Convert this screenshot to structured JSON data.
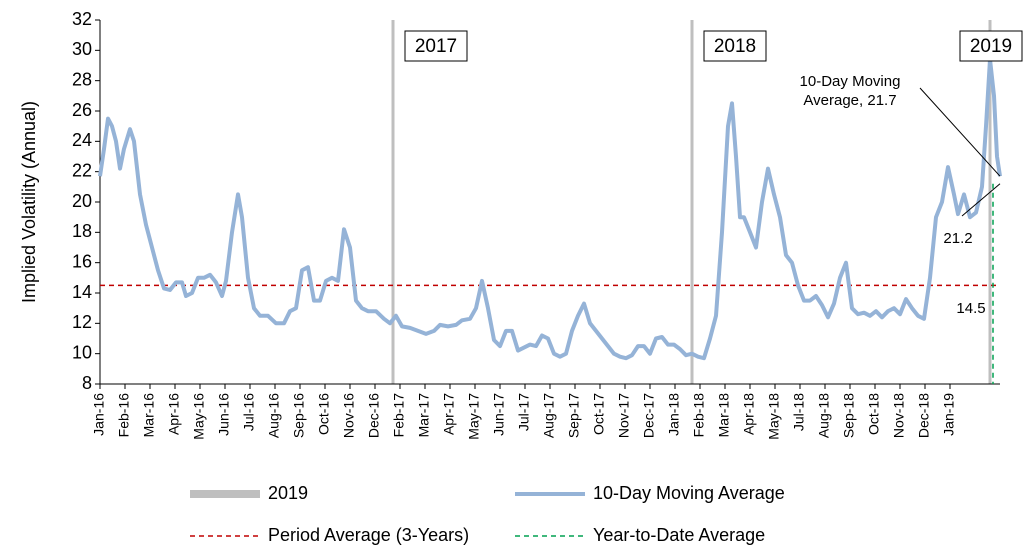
{
  "chart_data": {
    "type": "line",
    "y_label": "Implied Volatility (Annual)",
    "xlim": [
      0,
      36
    ],
    "xticks": [
      {
        "value": 0,
        "label": "Jan-16"
      },
      {
        "value": 1,
        "label": "Feb-16"
      },
      {
        "value": 2,
        "label": "Mar-16"
      },
      {
        "value": 3,
        "label": "Apr-16"
      },
      {
        "value": 4,
        "label": "May-16"
      },
      {
        "value": 5,
        "label": "Jun-16"
      },
      {
        "value": 6,
        "label": "Jul-16"
      },
      {
        "value": 7,
        "label": "Aug-16"
      },
      {
        "value": 8,
        "label": "Sep-16"
      },
      {
        "value": 9,
        "label": "Oct-16"
      },
      {
        "value": 10,
        "label": "Nov-16"
      },
      {
        "value": 11,
        "label": "Dec-16"
      },
      {
        "value": 12,
        "label": "Feb-17"
      },
      {
        "value": 13,
        "label": "Mar-17"
      },
      {
        "value": 14,
        "label": "Apr-17"
      },
      {
        "value": 15,
        "label": "May-17"
      },
      {
        "value": 16,
        "label": "Jun-17"
      },
      {
        "value": 17,
        "label": "Jul-17"
      },
      {
        "value": 18,
        "label": "Aug-17"
      },
      {
        "value": 19,
        "label": "Sep-17"
      },
      {
        "value": 20,
        "label": "Oct-17"
      },
      {
        "value": 21,
        "label": "Nov-17"
      },
      {
        "value": 22,
        "label": "Dec-17"
      },
      {
        "value": 23,
        "label": "Jan-18"
      },
      {
        "value": 24,
        "label": "Feb-18"
      },
      {
        "value": 25,
        "label": "Mar-18"
      },
      {
        "value": 26,
        "label": "Apr-18"
      },
      {
        "value": 27,
        "label": "May-18"
      },
      {
        "value": 28,
        "label": "Jul-18"
      },
      {
        "value": 29,
        "label": "Aug-18"
      },
      {
        "value": 30,
        "label": "Sep-18"
      },
      {
        "value": 31,
        "label": "Oct-18"
      },
      {
        "value": 32,
        "label": "Nov-18"
      },
      {
        "value": 33,
        "label": "Dec-18"
      },
      {
        "value": 34,
        "label": "Jan-19"
      }
    ],
    "ylim": [
      8,
      32
    ],
    "yticks": [
      8,
      10,
      12,
      14,
      16,
      18,
      20,
      22,
      24,
      26,
      28,
      30,
      32
    ],
    "series": [
      {
        "name": "10-Day Moving Average",
        "color": "#95b3d7",
        "x": [
          0,
          0.16,
          0.32,
          0.48,
          0.64,
          0.8,
          0.96,
          1.2,
          1.36,
          1.6,
          1.84,
          2.08,
          2.32,
          2.56,
          2.8,
          3.04,
          3.28,
          3.44,
          3.68,
          3.92,
          4.16,
          4.4,
          4.64,
          4.88,
          5.04,
          5.28,
          5.52,
          5.68,
          5.92,
          6.16,
          6.4,
          6.72,
          7.04,
          7.36,
          7.6,
          7.84,
          8.08,
          8.32,
          8.56,
          8.8,
          9.04,
          9.28,
          9.52,
          9.76,
          10,
          10.24,
          10.48,
          10.72,
          11.04,
          11.36,
          11.6,
          11.84,
          12.08,
          12.4,
          12.72,
          13.04,
          13.36,
          13.6,
          13.92,
          14.24,
          14.48,
          14.8,
          15.04,
          15.28,
          15.52,
          15.76,
          16,
          16.24,
          16.48,
          16.72,
          16.96,
          17.2,
          17.44,
          17.68,
          17.92,
          18.16,
          18.4,
          18.64,
          18.88,
          19.12,
          19.36,
          19.6,
          19.84,
          20.08,
          20.32,
          20.56,
          20.8,
          21.04,
          21.28,
          21.52,
          21.76,
          22,
          22.24,
          22.48,
          22.72,
          22.96,
          23.2,
          23.44,
          23.68,
          23.92,
          24.16,
          24.4,
          24.64,
          24.88,
          25.12,
          25.28,
          25.44,
          25.6,
          25.76,
          26,
          26.24,
          26.48,
          26.72,
          26.96,
          27.2,
          27.44,
          27.68,
          27.92,
          28.16,
          28.4,
          28.64,
          28.88,
          29.12,
          29.36,
          29.6,
          29.84,
          30.08,
          30.32,
          30.56,
          30.8,
          31.04,
          31.28,
          31.52,
          31.76,
          32,
          32.24,
          32.48,
          32.72,
          32.96,
          33.2,
          33.44,
          33.68,
          33.92,
          34.16,
          34.32,
          34.56,
          34.8,
          35.04,
          35.28,
          35.44,
          35.6,
          35.76,
          35.88,
          36
        ],
        "values": [
          21.7,
          23.5,
          25.5,
          25,
          24,
          22.2,
          23.5,
          24.8,
          24,
          20.5,
          18.5,
          17,
          15.5,
          14.3,
          14.2,
          14.7,
          14.7,
          13.8,
          14,
          15,
          15,
          15.2,
          14.7,
          13.8,
          14.8,
          18,
          20.5,
          19,
          15,
          13,
          12.5,
          12.5,
          12,
          12,
          12.8,
          13,
          15.5,
          15.7,
          13.5,
          13.5,
          14.8,
          15,
          14.8,
          18.2,
          17,
          13.5,
          13,
          12.8,
          12.8,
          12.3,
          12,
          12.5,
          11.8,
          11.7,
          11.5,
          11.3,
          11.5,
          11.9,
          11.8,
          11.9,
          12.2,
          12.3,
          13,
          14.8,
          13,
          10.9,
          10.5,
          11.5,
          11.5,
          10.2,
          10.4,
          10.6,
          10.5,
          11.2,
          11,
          10,
          9.8,
          10,
          11.5,
          12.5,
          13.3,
          12,
          11.5,
          11,
          10.5,
          10,
          9.8,
          9.7,
          9.9,
          10.5,
          10.5,
          10,
          11,
          11.1,
          10.6,
          10.6,
          10.3,
          9.9,
          10,
          9.8,
          9.7,
          11,
          12.5,
          18,
          25,
          26.5,
          23,
          19,
          19,
          18,
          17,
          20,
          22.2,
          20.5,
          19,
          16.5,
          16,
          14.5,
          13.5,
          13.5,
          13.8,
          13.2,
          12.4,
          13.3,
          15,
          16,
          13,
          12.6,
          12.7,
          12.5,
          12.8,
          12.4,
          12.8,
          13,
          12.6,
          13.6,
          13,
          12.5,
          12.3,
          15,
          19,
          20,
          22.3,
          20.5,
          19.2,
          20.5,
          19,
          19.3,
          21,
          25,
          29.4,
          27,
          23,
          21.7
        ]
      }
    ],
    "year_markers": {
      "name": "2019",
      "color": "#bfbfbf",
      "x": [
        11.72,
        23.68,
        35.6
      ],
      "labels": [
        "2017",
        "2018",
        "2019"
      ]
    },
    "period_average": {
      "name": "Period Average (3-Years)",
      "color": "#c00000",
      "value": 14.5
    },
    "ytd_average": {
      "name": "Year-to-Date Average",
      "color": "#00a050",
      "x": 35.72,
      "value": 21.2
    },
    "end_annotation": {
      "lines": [
        "10-Day Moving",
        "Average, 21.7"
      ],
      "value": 21.7
    }
  }
}
